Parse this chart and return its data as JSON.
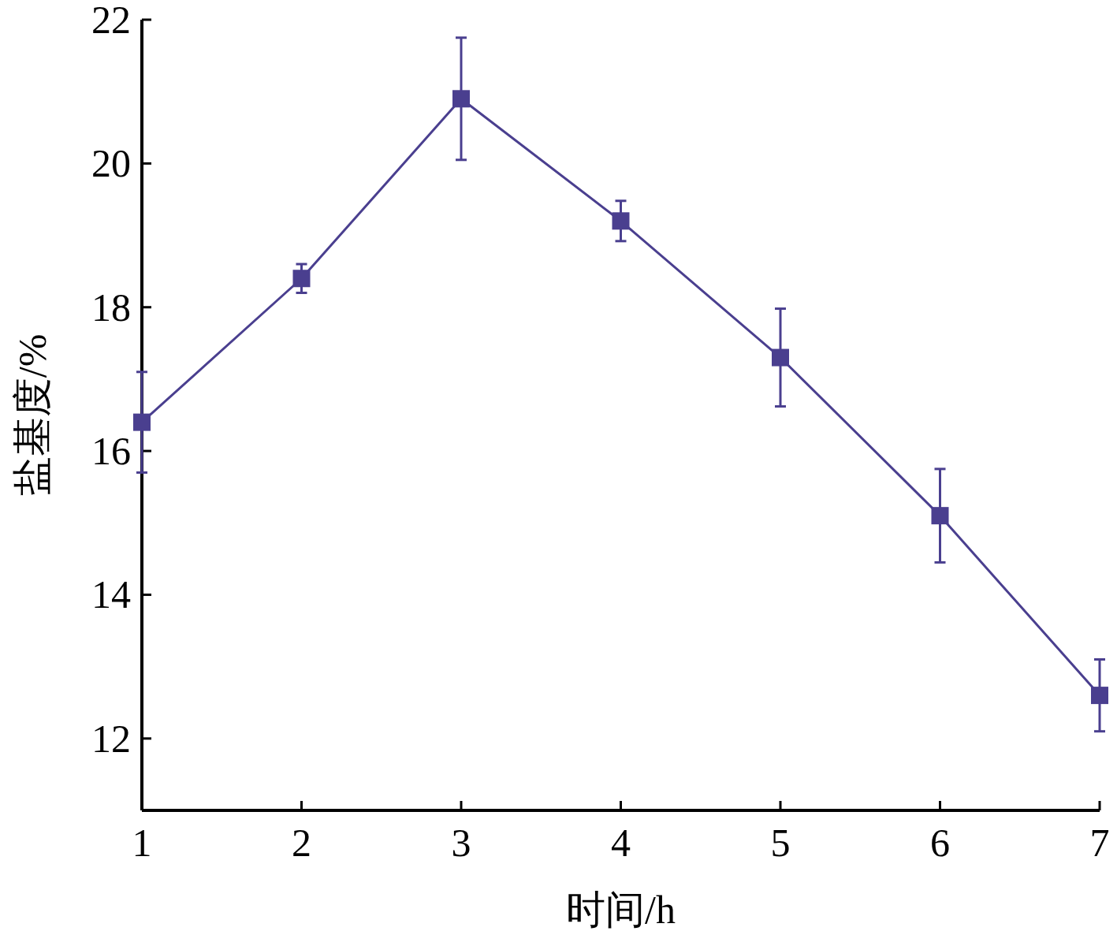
{
  "chart_data": {
    "type": "line",
    "xlabel": "时间/h",
    "ylabel": "盐基度/%",
    "x": [
      1,
      2,
      3,
      4,
      5,
      6,
      7
    ],
    "values": [
      16.4,
      18.4,
      20.9,
      19.2,
      17.3,
      15.1,
      12.6
    ],
    "errors": [
      0.7,
      0.2,
      0.85,
      0.28,
      0.68,
      0.65,
      0.5
    ],
    "color": "#4a3f8f",
    "marker": "square",
    "line_style": "solid",
    "xlim": [
      1,
      7
    ],
    "ylim": [
      11,
      22
    ],
    "xticks": [
      1,
      2,
      3,
      4,
      5,
      6,
      7
    ],
    "yticks": [
      12,
      14,
      16,
      18,
      20,
      22
    ]
  }
}
